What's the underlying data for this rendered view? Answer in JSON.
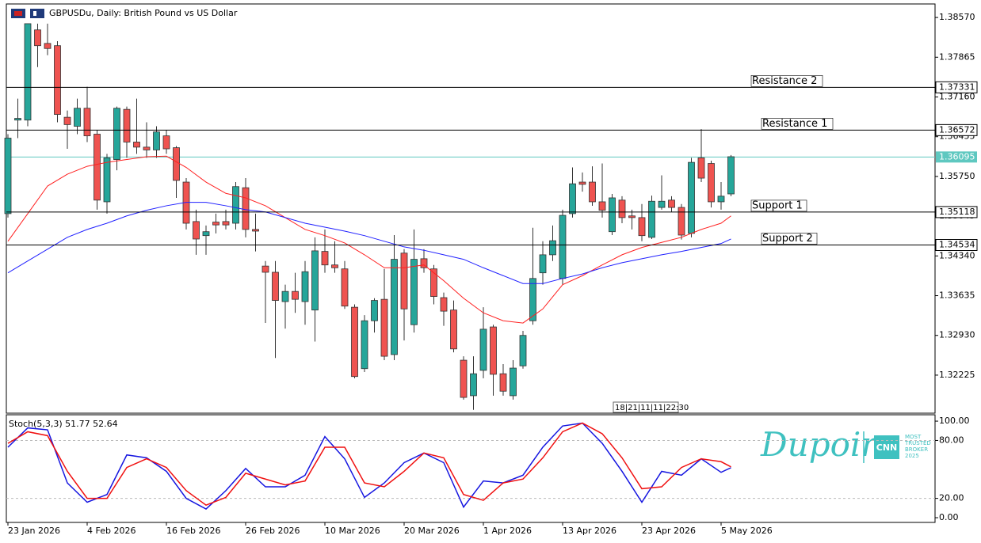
{
  "chart_data": [
    {
      "type": "candlestick",
      "title": "GBPUSDu, Daily:  British Pound vs US Dollar",
      "categories": [
        "23 Jan 2026",
        null,
        null,
        null,
        null,
        null,
        null,
        null,
        "4 Feb 2026",
        null,
        null,
        null,
        null,
        null,
        null,
        null,
        "16 Feb 2026",
        null,
        null,
        null,
        null,
        null,
        null,
        null,
        "26 Feb 2026",
        null,
        null,
        null,
        null,
        null,
        null,
        null,
        "10 Mar 2026",
        null,
        null,
        null,
        null,
        null,
        null,
        null,
        "20 Mar 2026",
        null,
        null,
        null,
        null,
        null,
        null,
        null,
        "1 Apr 2026",
        null,
        null,
        null,
        null,
        null,
        null,
        null,
        "13 Apr 2026",
        null,
        null,
        null,
        null,
        null,
        null,
        null,
        "23 Apr 2026",
        null,
        null,
        null,
        null,
        null,
        null,
        null,
        "5 May 2026",
        null
      ],
      "ohlc": [
        [
          1.3509,
          1.365,
          1.3502,
          1.3643
        ],
        [
          1.3675,
          1.3713,
          1.3643,
          1.3678
        ],
        [
          1.3675,
          1.3846,
          1.3664,
          1.3846
        ],
        [
          1.3835,
          1.3846,
          1.3769,
          1.3807
        ],
        [
          1.3811,
          1.3846,
          1.379,
          1.3802
        ],
        [
          1.3807,
          1.3815,
          1.3671,
          1.3685
        ],
        [
          1.368,
          1.3692,
          1.3624,
          1.3667
        ],
        [
          1.3664,
          1.3713,
          1.365,
          1.3696
        ],
        [
          1.3696,
          1.3734,
          1.3636,
          1.3647
        ],
        [
          1.365,
          1.3657,
          1.3516,
          1.3533
        ],
        [
          1.353,
          1.3615,
          1.3509,
          1.3608
        ],
        [
          1.3605,
          1.3699,
          1.3586,
          1.3696
        ],
        [
          1.3694,
          1.3699,
          1.3608,
          1.3636
        ],
        [
          1.3636,
          1.3713,
          1.3615,
          1.3627
        ],
        [
          1.3627,
          1.3671,
          1.3608,
          1.3622
        ],
        [
          1.3622,
          1.3664,
          1.3608,
          1.3654
        ],
        [
          1.3647,
          1.3657,
          1.3615,
          1.3624
        ],
        [
          1.3626,
          1.3629,
          1.3537,
          1.3568
        ],
        [
          1.3565,
          1.3572,
          1.3481,
          1.3492
        ],
        [
          1.3495,
          1.3516,
          1.3436,
          1.3464
        ],
        [
          1.347,
          1.3488,
          1.3436,
          1.3477
        ],
        [
          1.3494,
          1.3509,
          1.3474,
          1.3489
        ],
        [
          1.3495,
          1.3516,
          1.3481,
          1.3489
        ],
        [
          1.3492,
          1.3565,
          1.3481,
          1.3557
        ],
        [
          1.3555,
          1.3572,
          1.3467,
          1.3481
        ],
        [
          1.3481,
          1.3509,
          1.3442,
          1.3478
        ],
        [
          1.3416,
          1.3425,
          1.3315,
          1.3405
        ],
        [
          1.3405,
          1.3425,
          1.3253,
          1.3355
        ],
        [
          1.3353,
          1.3383,
          1.3305,
          1.3371
        ],
        [
          1.3371,
          1.3404,
          1.3333,
          1.3357
        ],
        [
          1.3353,
          1.3425,
          1.3312,
          1.3406
        ],
        [
          1.3338,
          1.3467,
          1.3282,
          1.3443
        ],
        [
          1.3442,
          1.3481,
          1.3404,
          1.3418
        ],
        [
          1.3418,
          1.346,
          1.3404,
          1.3413
        ],
        [
          1.3411,
          1.3425,
          1.334,
          1.3345
        ],
        [
          1.3343,
          1.3348,
          1.3217,
          1.322
        ],
        [
          1.3234,
          1.3329,
          1.3228,
          1.3319
        ],
        [
          1.3319,
          1.3359,
          1.3298,
          1.3355
        ],
        [
          1.3357,
          1.3411,
          1.3249,
          1.3256
        ],
        [
          1.3259,
          1.3471,
          1.3249,
          1.3428
        ],
        [
          1.3439,
          1.3446,
          1.3284,
          1.334
        ],
        [
          1.3312,
          1.3481,
          1.3298,
          1.3428
        ],
        [
          1.3429,
          1.3446,
          1.3404,
          1.3413
        ],
        [
          1.3411,
          1.3418,
          1.3348,
          1.3362
        ],
        [
          1.336,
          1.3369,
          1.331,
          1.3336
        ],
        [
          1.3338,
          1.3355,
          1.3263,
          1.3269
        ],
        [
          1.3249,
          1.3256,
          1.3179,
          1.3183
        ],
        [
          1.3186,
          1.3256,
          1.3161,
          1.3225
        ],
        [
          1.3231,
          1.3343,
          1.3217,
          1.3304
        ],
        [
          1.3308,
          1.3312,
          1.3186,
          1.3224
        ],
        [
          1.3225,
          1.3242,
          1.3186,
          1.3194
        ],
        [
          1.3186,
          1.3249,
          1.3179,
          1.3235
        ],
        [
          1.3239,
          1.3301,
          1.3234,
          1.3293
        ],
        [
          1.3319,
          1.3484,
          1.3312,
          1.3394
        ],
        [
          1.3404,
          1.346,
          1.3383,
          1.3436
        ],
        [
          1.3436,
          1.3488,
          1.3425,
          1.3461
        ],
        [
          1.3394,
          1.3516,
          1.3383,
          1.3506
        ],
        [
          1.3509,
          1.3591,
          1.3502,
          1.3562
        ],
        [
          1.3565,
          1.3582,
          1.3548,
          1.3561
        ],
        [
          1.3565,
          1.3593,
          1.3523,
          1.353
        ],
        [
          1.353,
          1.3598,
          1.3502,
          1.3515
        ],
        [
          1.3477,
          1.3544,
          1.3471,
          1.3537
        ],
        [
          1.3533,
          1.354,
          1.3492,
          1.3502
        ],
        [
          1.3505,
          1.3516,
          1.3481,
          1.3502
        ],
        [
          1.3502,
          1.3526,
          1.346,
          1.347
        ],
        [
          1.3467,
          1.3541,
          1.3464,
          1.3531
        ],
        [
          1.352,
          1.3577,
          1.3516,
          1.3531
        ],
        [
          1.3533,
          1.354,
          1.3512,
          1.352
        ],
        [
          1.352,
          1.3526,
          1.3463,
          1.3471
        ],
        [
          1.3474,
          1.3608,
          1.3467,
          1.36
        ],
        [
          1.3608,
          1.3659,
          1.3565,
          1.3572
        ],
        [
          1.3598,
          1.3603,
          1.352,
          1.353
        ],
        [
          1.353,
          1.3565,
          1.3516,
          1.354
        ],
        [
          1.3544,
          1.3613,
          1.354,
          1.361
        ]
      ],
      "up_color": "#26a69a",
      "down_color": "#ef5350",
      "overlays": [
        {
          "color": "#ff2020",
          "x": [
            0,
            2,
            4,
            6,
            8,
            10,
            12,
            14,
            16,
            18,
            20,
            22,
            24,
            26,
            28,
            30,
            32,
            34,
            36,
            38,
            40,
            42,
            44,
            46,
            48,
            50,
            52,
            54,
            56,
            58,
            60,
            62,
            64,
            66,
            68,
            70,
            72,
            73
          ],
          "values": [
            1.346,
            1.3509,
            1.3558,
            1.3579,
            1.3593,
            1.36,
            1.3605,
            1.361,
            1.3611,
            1.3591,
            1.3565,
            1.3545,
            1.3537,
            1.3523,
            1.3502,
            1.3481,
            1.347,
            1.3457,
            1.3436,
            1.3413,
            1.3413,
            1.3418,
            1.339,
            1.3359,
            1.3333,
            1.3319,
            1.3315,
            1.334,
            1.3383,
            1.3399,
            1.3418,
            1.3436,
            1.3449,
            1.3458,
            1.3467,
            1.3481,
            1.3492,
            1.3505
          ]
        },
        {
          "color": "#2020ff",
          "x": [
            0,
            2,
            4,
            6,
            8,
            10,
            12,
            14,
            16,
            18,
            20,
            22,
            24,
            26,
            28,
            30,
            32,
            34,
            36,
            38,
            40,
            42,
            44,
            46,
            48,
            50,
            52,
            54,
            56,
            58,
            60,
            62,
            64,
            66,
            68,
            70,
            72,
            73
          ],
          "values": [
            1.3404,
            1.3425,
            1.3446,
            1.3467,
            1.3481,
            1.3492,
            1.3505,
            1.3515,
            1.3523,
            1.3529,
            1.3529,
            1.3523,
            1.3516,
            1.3512,
            1.3502,
            1.3492,
            1.3485,
            1.3478,
            1.347,
            1.346,
            1.345,
            1.3444,
            1.3436,
            1.3428,
            1.3413,
            1.3399,
            1.3385,
            1.3385,
            1.3394,
            1.3402,
            1.3413,
            1.3422,
            1.3429,
            1.3436,
            1.3442,
            1.3449,
            1.3456,
            1.3464
          ]
        }
      ],
      "levels": [
        {
          "label": "Resistance 2",
          "value": 1.37331
        },
        {
          "label": "Resistance 1",
          "value": 1.36572
        },
        {
          "label": "Support 1",
          "value": 1.35118
        },
        {
          "label": "Support 2",
          "value": 1.34534
        }
      ],
      "price_line": {
        "value": 1.36095,
        "color": "#5fc8c0"
      },
      "timer": "18|21|11|11|22:30",
      "ylim": [
        1.3155,
        1.3881
      ],
      "yticks": [
        {
          "value": 1.3857,
          "label": "1.38570"
        },
        {
          "value": 1.37865,
          "label": "1.37865"
        },
        {
          "value": 1.3716,
          "label": "1.37160"
        },
        {
          "value": 1.36455,
          "label": "1.36455"
        },
        {
          "value": 1.3575,
          "label": "1.35750"
        },
        {
          "value": 1.35045,
          "label": "1.35045"
        },
        {
          "value": 1.3434,
          "label": "1.34340"
        },
        {
          "value": 1.33635,
          "label": "1.33635"
        },
        {
          "value": 1.3293,
          "label": "1.32930"
        },
        {
          "value": 1.32225,
          "label": "1.32225"
        }
      ],
      "watermark": {
        "brand": "Dupoin",
        "badge": "CNN",
        "tagline": [
          "MOST",
          "TRUSTED",
          "BROKER",
          "2025"
        ]
      }
    },
    {
      "type": "line",
      "label": "Stoch(5,3,3)",
      "x": [
        0,
        2,
        4,
        6,
        8,
        10,
        12,
        14,
        16,
        18,
        20,
        22,
        24,
        26,
        28,
        30,
        32,
        34,
        36,
        38,
        40,
        42,
        44,
        46,
        48,
        50,
        52,
        54,
        56,
        58,
        60,
        62,
        64,
        66,
        68,
        70,
        72,
        73
      ],
      "series": [
        {
          "color": "#1515e0",
          "values": [
            73,
            93,
            91,
            36,
            16,
            24,
            65,
            62,
            48,
            20,
            9,
            28,
            51,
            32,
            32,
            44,
            84,
            61,
            21,
            36,
            57,
            67,
            57,
            11,
            38,
            36,
            44,
            73,
            95,
            98,
            77,
            48,
            16,
            48,
            44,
            61,
            47,
            51.77
          ]
        },
        {
          "color": "#f01010",
          "values": [
            77,
            89,
            85,
            48,
            20,
            20,
            52,
            61,
            52,
            28,
            13,
            21,
            46,
            40,
            34,
            38,
            73,
            73,
            36,
            32,
            48,
            67,
            62,
            24,
            18,
            36,
            40,
            62,
            89,
            98,
            87,
            62,
            30,
            32,
            52,
            61,
            58,
            52.64
          ]
        }
      ],
      "ylim": [
        -4.9,
        106.6
      ],
      "yticks": [
        {
          "value": 100,
          "label": "100.00"
        },
        {
          "value": 80,
          "label": "80.00"
        },
        {
          "value": 20,
          "label": "20.00"
        },
        {
          "value": 0,
          "label": "0.00"
        }
      ],
      "dashed_levels": [
        80,
        20
      ]
    }
  ]
}
